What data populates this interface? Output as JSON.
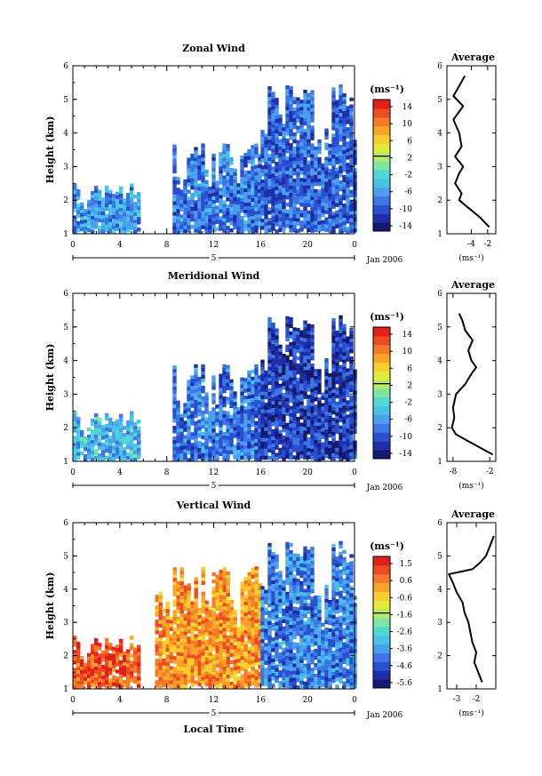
{
  "figure": {
    "x_tick_labels": [
      "0",
      "4",
      "8",
      "12",
      "16",
      "20",
      "0"
    ],
    "day_label": "5",
    "date_label": "Jan 2006",
    "xlabel": "Local Time",
    "ylabel": "Height (km)",
    "unit_label": "(ms⁻¹)",
    "avg_title": "Average"
  },
  "chart_data": [
    {
      "type": "heatmap",
      "title": "Zonal Wind",
      "ylabel": "Height (km)",
      "xlim_hours": [
        0,
        24
      ],
      "ylim": [
        1,
        6
      ],
      "y_ticks": [
        1,
        2,
        3,
        4,
        5,
        6
      ],
      "colorbar": {
        "ticks": [
          "14",
          "10",
          "6",
          "2",
          "-2",
          "-6",
          "-10",
          "-14"
        ],
        "range": [
          -16,
          16
        ],
        "colors": [
          "#161a6e",
          "#1f2ea8",
          "#2a4fd0",
          "#3b78e6",
          "#4aa0ec",
          "#48c2e6",
          "#52d8d2",
          "#7ee6a0",
          "#b4ec6a",
          "#e3ea3e",
          "#f7cf2c",
          "#f8a42a",
          "#f37b27",
          "#ee4b24",
          "#e11f1d"
        ]
      },
      "data_coverage": [
        {
          "x_range": [
            0,
            5.5
          ],
          "y_range": [
            1.1,
            2.5
          ],
          "level": -7
        },
        {
          "x_range": [
            8.5,
            16
          ],
          "y_range": [
            1.1,
            3.7
          ],
          "level": -9
        },
        {
          "x_range": [
            16,
            24
          ],
          "y_range": [
            1.1,
            5.5
          ],
          "level": -10
        }
      ],
      "average_profile": {
        "xlim": [
          -7,
          -1
        ],
        "x_ticks": [
          "-4",
          "-2"
        ],
        "xlabel": "(ms⁻¹)",
        "height": [
          1.2,
          1.5,
          1.8,
          2.0,
          2.2,
          2.5,
          2.8,
          3.0,
          3.3,
          3.6,
          4.0,
          4.4,
          4.8,
          5.1,
          5.4,
          5.7
        ],
        "value": [
          -1.8,
          -3.0,
          -4.5,
          -5.5,
          -5.2,
          -6.0,
          -5.5,
          -5.0,
          -6.0,
          -5.2,
          -5.5,
          -6.2,
          -5.0,
          -6.2,
          -5.5,
          -4.8
        ]
      }
    },
    {
      "type": "heatmap",
      "title": "Meridional Wind",
      "ylabel": "Height (km)",
      "xlim_hours": [
        0,
        24
      ],
      "ylim": [
        1,
        6
      ],
      "y_ticks": [
        1,
        2,
        3,
        4,
        5,
        6
      ],
      "colorbar": {
        "ticks": [
          "14",
          "10",
          "6",
          "2",
          "-2",
          "-6",
          "-10",
          "-14"
        ],
        "range": [
          -16,
          16
        ],
        "colors": [
          "#161a6e",
          "#1f2ea8",
          "#2a4fd0",
          "#3b78e6",
          "#4aa0ec",
          "#48c2e6",
          "#52d8d2",
          "#7ee6a0",
          "#b4ec6a",
          "#e3ea3e",
          "#f7cf2c",
          "#f8a42a",
          "#f37b27",
          "#ee4b24",
          "#e11f1d"
        ]
      },
      "data_coverage": [
        {
          "x_range": [
            0,
            5.5
          ],
          "y_range": [
            1.1,
            2.5
          ],
          "level": -5
        },
        {
          "x_range": [
            8.5,
            16
          ],
          "y_range": [
            1.1,
            3.9
          ],
          "level": -9
        },
        {
          "x_range": [
            16,
            24
          ],
          "y_range": [
            1.1,
            5.4
          ],
          "level": -12
        }
      ],
      "average_profile": {
        "xlim": [
          -9,
          -1
        ],
        "x_ticks": [
          "-8",
          "-2"
        ],
        "xlabel": "(ms⁻¹)",
        "height": [
          1.2,
          1.5,
          1.8,
          2.0,
          2.3,
          2.6,
          3.0,
          3.3,
          3.6,
          3.8,
          4.0,
          4.3,
          4.6,
          4.9,
          5.2,
          5.4
        ],
        "value": [
          -1.5,
          -4.5,
          -7.5,
          -8.2,
          -7.8,
          -8.0,
          -7.5,
          -6.0,
          -5.0,
          -4.2,
          -5.0,
          -5.5,
          -4.8,
          -6.0,
          -6.5,
          -7.0
        ]
      }
    },
    {
      "type": "heatmap",
      "title": "Vertical Wind",
      "ylabel": "Height (km)",
      "xlabel": "Local Time",
      "xlim_hours": [
        0,
        24
      ],
      "ylim": [
        1,
        6
      ],
      "y_ticks": [
        1,
        2,
        3,
        4,
        5,
        6
      ],
      "colorbar": {
        "ticks": [
          "1.5",
          "0.6",
          "-0.6",
          "-1.6",
          "-2.6",
          "-3.6",
          "-4.6",
          "-5.6"
        ],
        "range": [
          -6.1,
          2.0
        ],
        "colors": [
          "#161a6e",
          "#1f2ea8",
          "#2a4fd0",
          "#3b78e6",
          "#4aa0ec",
          "#48c2e6",
          "#52d8d2",
          "#7ee6a0",
          "#b4ec6a",
          "#e3ea3e",
          "#f7cf2c",
          "#f8a42a",
          "#f37b27",
          "#ee4b24",
          "#e11f1d"
        ]
      },
      "data_coverage": [
        {
          "x_range": [
            0,
            5.5
          ],
          "y_range": [
            1.1,
            2.6
          ],
          "level": 0.9
        },
        {
          "x_range": [
            7,
            16
          ],
          "y_range": [
            1.1,
            4.7
          ],
          "level": 0.2
        },
        {
          "x_range": [
            16,
            24
          ],
          "y_range": [
            1.1,
            5.5
          ],
          "level": -4.2
        }
      ],
      "average_profile": {
        "xlim": [
          -3.5,
          -1
        ],
        "x_ticks": [
          "-3",
          "-2"
        ],
        "xlabel": "(ms⁻¹)",
        "height": [
          1.2,
          1.5,
          1.8,
          2.1,
          2.4,
          2.7,
          3.0,
          3.3,
          3.6,
          3.9,
          4.2,
          4.45,
          4.6,
          4.8,
          5.0,
          5.3,
          5.6
        ],
        "value": [
          -1.7,
          -1.9,
          -2.1,
          -2.0,
          -2.2,
          -2.3,
          -2.4,
          -2.6,
          -2.7,
          -3.0,
          -3.2,
          -3.4,
          -2.2,
          -1.8,
          -1.5,
          -1.3,
          -1.1
        ]
      }
    }
  ]
}
